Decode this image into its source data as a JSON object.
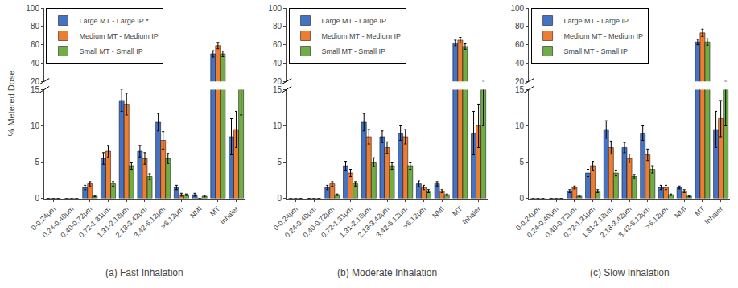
{
  "chart_data": [
    {
      "type": "bar",
      "title": "(a) Fast Inhalation",
      "ylabel": "% Metered Dose",
      "categories": [
        "0-0.24μm",
        "0.24-0.40μm",
        "0.40-0.72μm",
        "0.72-1.31μm",
        "1.31-2.18μm",
        "2.18-3.42μm",
        "3.42-6.12μm",
        ">6.12μm",
        "NMI",
        "MT",
        "Inhaler"
      ],
      "series": [
        {
          "name": "Large MT - Large IP *",
          "color": "#4472C4",
          "values": [
            0.0,
            0.0,
            1.5,
            5.5,
            13.5,
            6.5,
            10.5,
            1.5,
            0.5,
            50.0,
            8.5
          ],
          "errors": [
            0.0,
            0.0,
            0.3,
            0.8,
            1.5,
            0.8,
            1.2,
            0.3,
            0.2,
            3.5,
            2.5
          ]
        },
        {
          "name": "Medium MT - Medium IP",
          "color": "#ED7D31",
          "values": [
            0.0,
            0.0,
            2.0,
            6.5,
            13.0,
            5.5,
            8.0,
            0.5,
            0.0,
            59.0,
            9.5
          ],
          "errors": [
            0.0,
            0.0,
            0.3,
            0.8,
            1.5,
            0.8,
            1.2,
            0.2,
            0.0,
            3.5,
            2.5
          ]
        },
        {
          "name": "Small MT - Small IP",
          "color": "#70AD47",
          "values": [
            0.0,
            0.0,
            0.3,
            2.0,
            4.5,
            3.0,
            5.5,
            0.5,
            0.3,
            50.0,
            15.0
          ],
          "errors": [
            0.0,
            0.0,
            0.1,
            0.3,
            0.5,
            0.4,
            0.7,
            0.1,
            0.1,
            3.0,
            3.5
          ]
        }
      ],
      "ylim": [
        [
          0,
          15
        ],
        [
          20,
          100
        ]
      ],
      "yticks": [
        [
          0,
          5,
          10,
          15
        ],
        [
          20,
          40,
          60,
          80,
          100
        ]
      ],
      "grid": false,
      "legend": "upper left"
    },
    {
      "type": "bar",
      "title": "(b) Moderate Inhalation",
      "categories": [
        "0-0.24μm",
        "0.24-0.40μm",
        "0.40-0.72μm",
        "0.72-1.31μm",
        "1.31-2.18μm",
        "2.18-3.42μm",
        "3.42-6.12μm",
        ">6.12μm",
        "NMI",
        "MT",
        "Inhaler"
      ],
      "series": [
        {
          "name": "Large MT - Large IP",
          "color": "#4472C4",
          "values": [
            0.0,
            0.0,
            1.5,
            4.5,
            10.5,
            8.5,
            9.0,
            2.0,
            2.0,
            62.0,
            9.0
          ],
          "errors": [
            0.0,
            0.0,
            0.3,
            0.6,
            1.2,
            0.8,
            1.0,
            0.4,
            0.3,
            3.0,
            3.0
          ]
        },
        {
          "name": "Medium MT - Medium IP",
          "color": "#ED7D31",
          "values": [
            0.0,
            0.0,
            2.0,
            3.5,
            8.5,
            7.0,
            8.5,
            1.5,
            1.0,
            65.0,
            10.0
          ],
          "errors": [
            0.0,
            0.0,
            0.3,
            0.5,
            1.0,
            0.8,
            1.0,
            0.3,
            0.2,
            3.0,
            3.0
          ]
        },
        {
          "name": "Small MT - Small IP",
          "color": "#70AD47",
          "values": [
            0.0,
            0.0,
            0.5,
            2.0,
            5.0,
            4.5,
            4.5,
            1.0,
            0.5,
            58.0,
            15.0
          ],
          "errors": [
            0.0,
            0.0,
            0.1,
            0.3,
            0.6,
            0.5,
            0.5,
            0.2,
            0.1,
            3.0,
            5.0
          ]
        }
      ],
      "ylim": [
        [
          0,
          15
        ],
        [
          20,
          100
        ]
      ],
      "yticks": [
        [
          0,
          5,
          10,
          15
        ],
        [
          20,
          40,
          60,
          80,
          100
        ]
      ],
      "grid": false,
      "legend": "upper left"
    },
    {
      "type": "bar",
      "title": "(c) Slow Inhalation",
      "categories": [
        "0-0.24μm",
        "0.24-0.40μm",
        "0.40-0.72μm",
        "0.72-1.31μm",
        "1.31-2.18μm",
        "2.18-3.42μm",
        "3.42-6.12μm",
        ">6.12μm",
        "NMI",
        "MT",
        "Inhaler"
      ],
      "series": [
        {
          "name": "Large MT - Large IP",
          "color": "#4472C4",
          "values": [
            0.0,
            0.0,
            1.0,
            3.5,
            9.5,
            7.0,
            9.0,
            1.5,
            1.5,
            63.0,
            9.5
          ],
          "errors": [
            0.0,
            0.0,
            0.2,
            0.5,
            1.2,
            0.7,
            1.0,
            0.3,
            0.2,
            3.0,
            2.5
          ]
        },
        {
          "name": "Medium MT - Medium IP",
          "color": "#ED7D31",
          "values": [
            0.0,
            0.0,
            1.5,
            4.5,
            7.0,
            5.5,
            6.0,
            1.5,
            1.0,
            73.0,
            11.0
          ],
          "errors": [
            0.0,
            0.0,
            0.2,
            0.6,
            0.9,
            0.6,
            0.8,
            0.3,
            0.2,
            4.0,
            2.5
          ]
        },
        {
          "name": "Small MT - Small IP",
          "color": "#70AD47",
          "values": [
            0.0,
            0.0,
            0.3,
            1.0,
            3.5,
            3.0,
            4.0,
            0.5,
            0.3,
            63.0,
            15.0
          ],
          "errors": [
            0.0,
            0.0,
            0.1,
            0.2,
            0.4,
            0.3,
            0.5,
            0.1,
            0.1,
            3.5,
            5.0
          ]
        }
      ],
      "ylim": [
        [
          0,
          15
        ],
        [
          20,
          100
        ]
      ],
      "yticks": [
        [
          0,
          5,
          10,
          15
        ],
        [
          20,
          40,
          60,
          80,
          100
        ]
      ],
      "grid": false,
      "legend": "upper left"
    }
  ]
}
